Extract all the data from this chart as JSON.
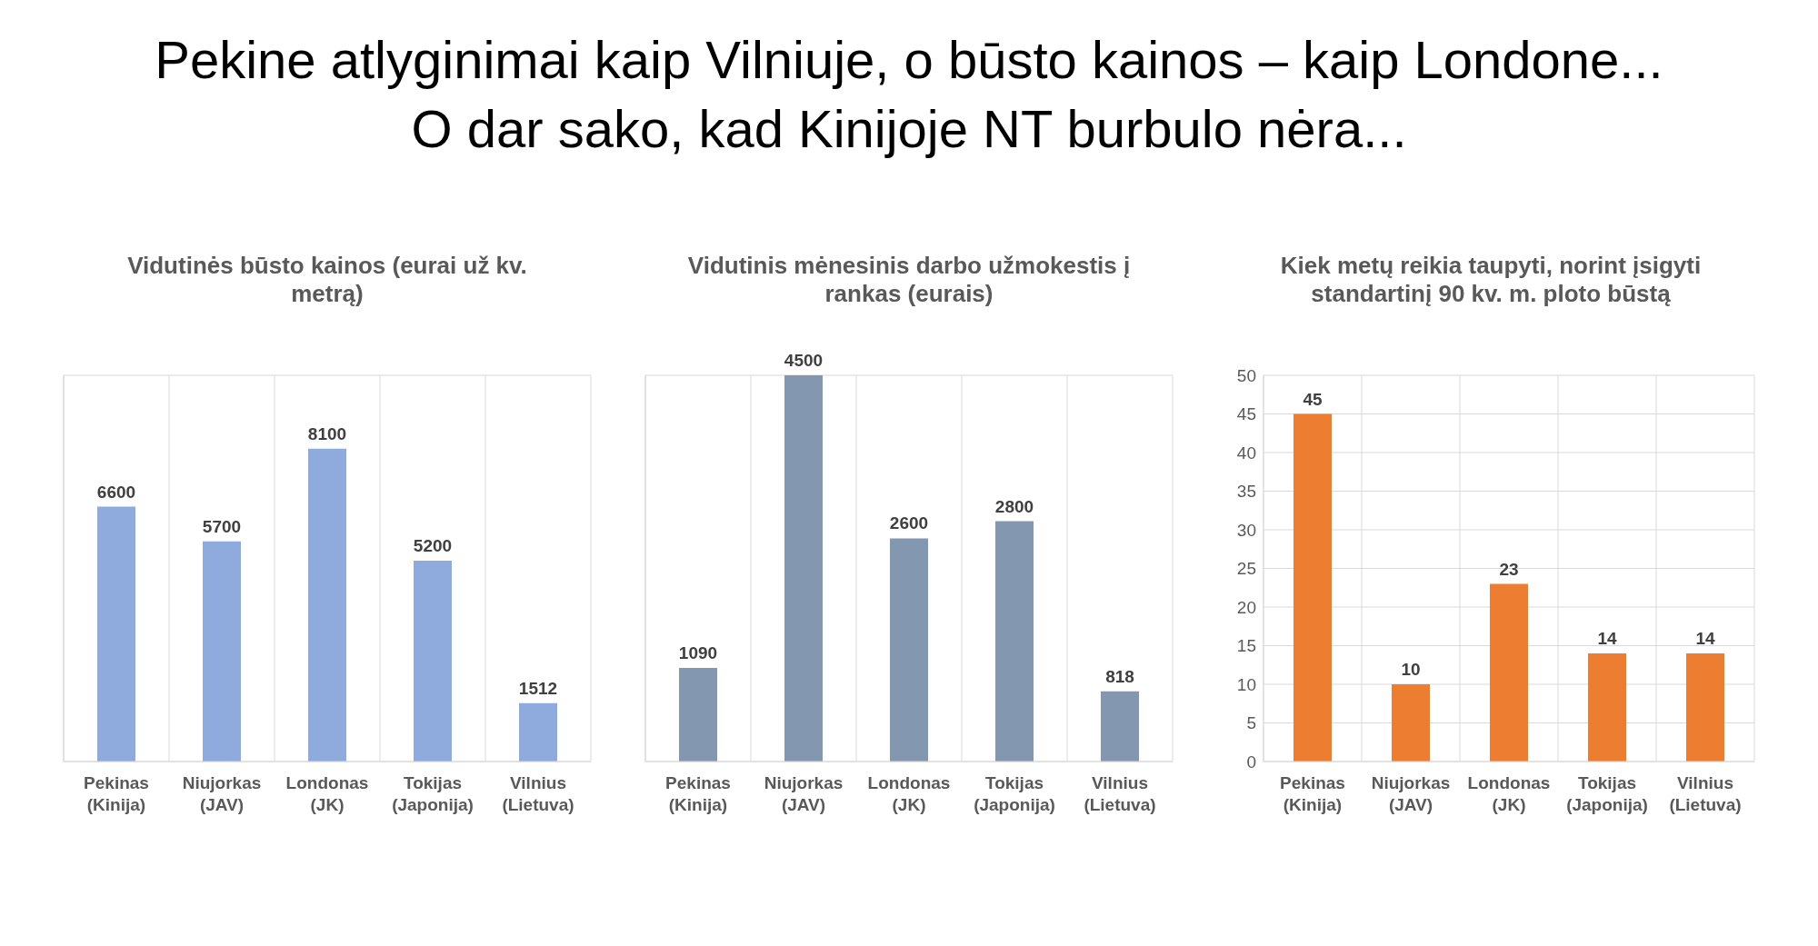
{
  "chart_data": [
    {
      "type": "bar",
      "annotations": [
        "Pekine atlyginimai kaip Vilniuje, o būsto kainos – kaip Londone...",
        "O dar sako, kad Kinijoje NT burbulo nėra..."
      ],
      "title": "Vidutinės būsto kainos (eurai už kv. metrą)",
      "categories": [
        "Pekinas (Kinija)",
        "Niujorkas (JAV)",
        "Londonas (JK)",
        "Tokijas (Japonija)",
        "Vilnius (Lietuva)"
      ],
      "values": [
        6600,
        5700,
        8100,
        5200,
        1512
      ],
      "color": "#8faadc",
      "tick_labels": "x",
      "grid": true,
      "data_labels": true
    },
    {
      "type": "bar",
      "title": "Vidutinis mėnesinis darbo užmokestis į rankas (eurais)",
      "categories": [
        "Pekinas (Kinija)",
        "Niujorkas (JAV)",
        "Londonas (JK)",
        "Tokijas (Japonija)",
        "Vilnius (Lietuva)"
      ],
      "values": [
        1090,
        4500,
        2600,
        2800,
        818
      ],
      "color": "#8497b0",
      "tick_labels": "x",
      "grid": true,
      "data_labels": true
    },
    {
      "type": "bar",
      "title": "Kiek metų reikia taupyti, norint įsigyti standartinį 90 kv. m. ploto būstą",
      "categories": [
        "Pekinas (Kinija)",
        "Niujorkas (JAV)",
        "Londonas (JK)",
        "Tokijas (Japonija)",
        "Vilnius (Lietuva)"
      ],
      "values": [
        45,
        10,
        23,
        14,
        14
      ],
      "color": "#ed7d31",
      "ylim": [
        0,
        50
      ],
      "yticks": [
        0,
        5,
        10,
        15,
        20,
        25,
        30,
        35,
        40,
        45,
        50
      ],
      "grid": true,
      "data_labels": true
    }
  ]
}
